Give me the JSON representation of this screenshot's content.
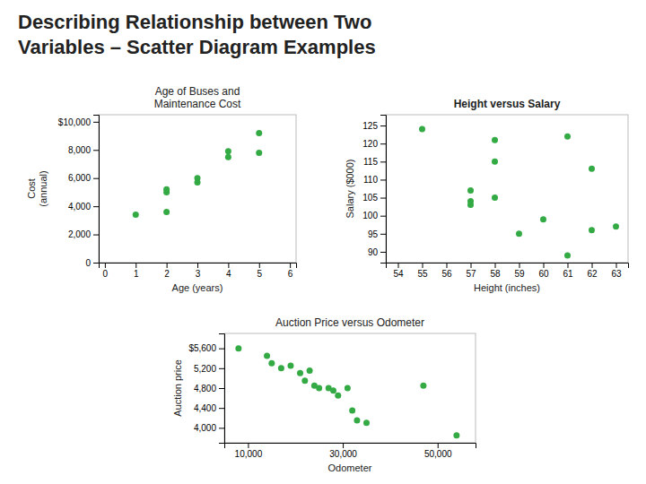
{
  "title": "Describing Relationship between Two\nVariables – Scatter Diagram Examples",
  "chart_data": [
    {
      "type": "scatter",
      "title": "Age of Buses and\nMaintenance Cost",
      "xlabel": "Age (years)",
      "ylabel": "Cost\n(annual)",
      "x": [
        1,
        2,
        2,
        2,
        3,
        3,
        4,
        4,
        5,
        5
      ],
      "values": [
        3400,
        3600,
        5000,
        5200,
        5700,
        6000,
        7500,
        7900,
        9200,
        7800
      ],
      "color": "#33aa44",
      "xlim": [
        -0.2,
        6.2
      ],
      "ylim": [
        0,
        10500
      ],
      "xticks": [
        0,
        1,
        2,
        3,
        4,
        5,
        6
      ],
      "yticks": [
        0,
        {
          "value": 2000,
          "label": "2,000"
        },
        {
          "value": 4000,
          "label": "4,000"
        },
        {
          "value": 6000,
          "label": "6,000"
        },
        {
          "value": 8000,
          "label": "8,000"
        },
        {
          "value": 10000,
          "label": "$10,000"
        }
      ]
    },
    {
      "type": "scatter",
      "title": "Height versus Salary",
      "xlabel": "Height (inches)",
      "ylabel": "Salary ($000)",
      "x": [
        55,
        57,
        57,
        57,
        58,
        58,
        58,
        59,
        60,
        61,
        61,
        62,
        62,
        63
      ],
      "values": [
        124,
        104,
        107,
        103,
        121,
        115,
        105,
        95,
        99,
        122,
        89,
        113,
        96,
        97
      ],
      "color": "#33aa44",
      "xlim": [
        53.5,
        63.5
      ],
      "ylim": [
        87,
        128
      ],
      "xticks": [
        54,
        55,
        56,
        57,
        58,
        59,
        60,
        61,
        62,
        63
      ],
      "yticks": [
        90,
        95,
        100,
        105,
        110,
        115,
        120,
        125
      ]
    },
    {
      "type": "scatter",
      "title": "Auction Price versus Odometer",
      "xlabel": "Odometer",
      "ylabel": "Auction price",
      "x": [
        8000,
        14000,
        15000,
        17000,
        19000,
        21000,
        22000,
        23000,
        24000,
        25000,
        27000,
        28000,
        29000,
        31000,
        32000,
        33000,
        35000,
        47000,
        54000
      ],
      "values": [
        5600,
        5450,
        5300,
        5200,
        5250,
        5100,
        4950,
        5150,
        4850,
        4800,
        4800,
        4750,
        4650,
        4800,
        4350,
        4150,
        4100,
        4850,
        3850
      ],
      "color": "#33aa44",
      "xlim": [
        5000,
        58000
      ],
      "ylim": [
        3700,
        5900
      ],
      "xticks": [
        {
          "value": 10000,
          "label": "10,000"
        },
        {
          "value": 30000,
          "label": "30,000"
        },
        {
          "value": 50000,
          "label": "50,000"
        }
      ],
      "yticks": [
        {
          "value": 4000,
          "label": "4,000"
        },
        {
          "value": 4400,
          "label": "4,400"
        },
        {
          "value": 4800,
          "label": "4,800"
        },
        {
          "value": 5200,
          "label": "5,200"
        },
        {
          "value": 5600,
          "label": "$5,600"
        }
      ]
    }
  ]
}
